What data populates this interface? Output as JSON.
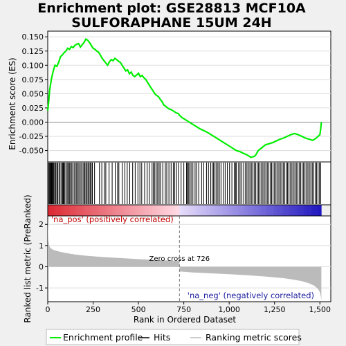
{
  "title_line1": "Enrichment plot: GSE28813 MCF10A",
  "title_line2": "SULFORAPHANE 15UM 24H",
  "chart_data": {
    "type": "line",
    "panels": [
      {
        "name": "enrichment_profile",
        "ylabel": "Enrichment score (ES)",
        "ylim": [
          -0.07,
          0.16
        ],
        "yticks": [
          "0.150",
          "0.125",
          "0.100",
          "0.075",
          "0.050",
          "0.025",
          "0.000",
          "-0.025",
          "-0.050"
        ],
        "ytick_values": [
          0.15,
          0.125,
          0.1,
          0.075,
          0.05,
          0.025,
          0.0,
          -0.025,
          -0.05
        ],
        "series": [
          {
            "name": "Enrichment profile",
            "color": "#00ee00",
            "x": [
              0,
              5,
              10,
              20,
              30,
              40,
              50,
              60,
              70,
              80,
              90,
              100,
              110,
              120,
              130,
              140,
              150,
              160,
              170,
              180,
              190,
              200,
              210,
              220,
              230,
              240,
              250,
              260,
              270,
              280,
              290,
              300,
              310,
              320,
              330,
              340,
              350,
              360,
              370,
              380,
              390,
              400,
              410,
              420,
              430,
              440,
              450,
              460,
              470,
              480,
              490,
              500,
              510,
              520,
              530,
              540,
              550,
              560,
              570,
              580,
              590,
              600,
              610,
              620,
              630,
              640,
              650,
              660,
              670,
              680,
              690,
              700,
              710,
              720,
              726,
              740,
              760,
              780,
              800,
              820,
              840,
              860,
              880,
              900,
              920,
              940,
              960,
              980,
              1000,
              1020,
              1040,
              1060,
              1080,
              1100,
              1120,
              1140,
              1150,
              1160,
              1180,
              1200,
              1220,
              1240,
              1260,
              1280,
              1300,
              1320,
              1340,
              1360,
              1380,
              1400,
              1420,
              1440,
              1460,
              1480,
              1500,
              1505,
              1508
            ],
            "y": [
              0.02,
              0.035,
              0.055,
              0.075,
              0.09,
              0.1,
              0.098,
              0.105,
              0.115,
              0.118,
              0.122,
              0.125,
              0.13,
              0.128,
              0.133,
              0.131,
              0.135,
              0.137,
              0.138,
              0.132,
              0.136,
              0.14,
              0.146,
              0.144,
              0.14,
              0.135,
              0.13,
              0.128,
              0.125,
              0.123,
              0.118,
              0.112,
              0.108,
              0.104,
              0.1,
              0.106,
              0.11,
              0.108,
              0.112,
              0.11,
              0.107,
              0.105,
              0.1,
              0.095,
              0.09,
              0.092,
              0.085,
              0.088,
              0.082,
              0.08,
              0.083,
              0.086,
              0.08,
              0.082,
              0.078,
              0.075,
              0.07,
              0.065,
              0.06,
              0.055,
              0.05,
              0.047,
              0.045,
              0.04,
              0.036,
              0.03,
              0.028,
              0.025,
              0.023,
              0.022,
              0.02,
              0.018,
              0.016,
              0.015,
              0.012,
              0.008,
              0.004,
              0.0,
              -0.004,
              -0.008,
              -0.012,
              -0.015,
              -0.018,
              -0.022,
              -0.026,
              -0.03,
              -0.034,
              -0.038,
              -0.042,
              -0.046,
              -0.05,
              -0.052,
              -0.055,
              -0.058,
              -0.062,
              -0.06,
              -0.056,
              -0.05,
              -0.045,
              -0.04,
              -0.038,
              -0.036,
              -0.033,
              -0.03,
              -0.028,
              -0.025,
              -0.022,
              -0.02,
              -0.022,
              -0.025,
              -0.028,
              -0.03,
              -0.032,
              -0.028,
              -0.022,
              -0.01,
              0.0
            ]
          }
        ]
      },
      {
        "name": "ranked_metric",
        "ylabel": "Ranked list metric (PreRanked)",
        "xlabel": "Rank in Ordered Dataset",
        "ylim": [
          -1.65,
          2.4
        ],
        "yticks": [
          "2",
          "1",
          "0",
          "-1"
        ],
        "ytick_values": [
          2,
          1,
          0,
          -1
        ],
        "xlim": [
          0,
          1560
        ],
        "xticks": [
          "0",
          "250",
          "500",
          "750",
          "1,000",
          "1,250",
          "1,500"
        ],
        "xtick_values": [
          0,
          250,
          500,
          750,
          1000,
          1250,
          1500
        ],
        "n_genes": 1508,
        "zero_cross": 726,
        "metric_profile": {
          "x": [
            0,
            3,
            8,
            15,
            30,
            60,
            100,
            150,
            200,
            300,
            400,
            500,
            600,
            700,
            725,
            727,
            750,
            800,
            900,
            1000,
            1100,
            1200,
            1300,
            1350,
            1400,
            1440,
            1470,
            1490,
            1500,
            1505,
            1508
          ],
          "y": [
            2.3,
            1.3,
            1.0,
            0.88,
            0.8,
            0.72,
            0.65,
            0.58,
            0.53,
            0.46,
            0.41,
            0.36,
            0.32,
            0.28,
            0.27,
            -0.22,
            -0.24,
            -0.27,
            -0.31,
            -0.35,
            -0.4,
            -0.46,
            -0.54,
            -0.6,
            -0.68,
            -0.78,
            -0.9,
            -1.05,
            -1.2,
            -1.4,
            -1.6
          ]
        }
      }
    ],
    "hits": [
      5,
      9,
      13,
      17,
      21,
      25,
      29,
      33,
      38,
      44,
      50,
      55,
      62,
      68,
      75,
      82,
      86,
      90,
      95,
      104,
      110,
      116,
      121,
      127,
      133,
      140,
      148,
      156,
      161,
      168,
      175,
      183,
      190,
      198,
      204,
      210,
      216,
      222,
      228,
      234,
      240,
      246,
      258,
      285,
      298,
      312,
      320,
      338,
      355,
      372,
      385,
      392,
      410,
      425,
      438,
      452,
      468,
      482,
      497,
      508,
      518,
      534,
      548,
      560,
      575,
      582,
      590,
      598,
      606,
      614,
      622,
      634,
      648,
      656,
      668,
      680,
      692,
      700,
      710,
      720,
      735,
      750,
      765,
      770,
      775,
      782,
      790,
      800,
      812,
      820,
      832,
      848,
      860,
      875,
      886,
      898,
      906,
      914,
      922,
      930,
      938,
      946,
      955,
      968,
      978,
      990,
      1002,
      1015,
      1028,
      1035,
      1040,
      1052,
      1060,
      1070,
      1080,
      1090,
      1098,
      1106,
      1114,
      1122,
      1130,
      1138,
      1146,
      1154,
      1162,
      1170,
      1178,
      1186,
      1194,
      1202,
      1210,
      1218,
      1226,
      1234,
      1242,
      1250,
      1258,
      1266,
      1274,
      1282,
      1290,
      1298,
      1306,
      1314,
      1322,
      1330,
      1338,
      1346,
      1354,
      1362,
      1370,
      1378,
      1386,
      1394,
      1402,
      1410,
      1418,
      1426,
      1434,
      1442,
      1450,
      1458,
      1466,
      1474,
      1482,
      1490,
      1498,
      1504
    ],
    "heatmap_split": 726,
    "annotations": {
      "pos_label": "'na_pos' (positively correlated)",
      "neg_label": "'na_neg' (negatively correlated)",
      "zero_cross_label": "Zero cross at 726"
    },
    "legend": {
      "placement": "bottom",
      "items": [
        {
          "name": "Enrichment profile",
          "color": "#00ee00"
        },
        {
          "name": "Hits",
          "color": "#000000"
        },
        {
          "name": "Ranking metric scores",
          "color": "#bbbbbb"
        }
      ]
    }
  }
}
